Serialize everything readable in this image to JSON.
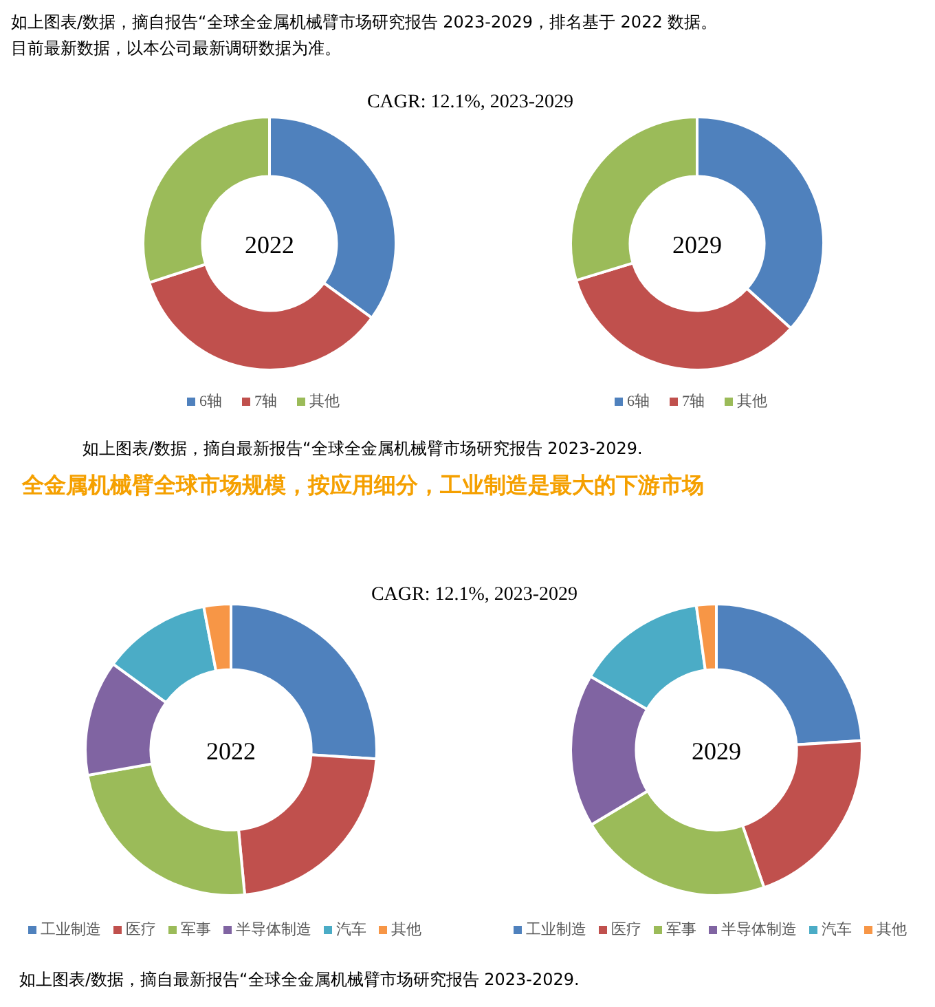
{
  "chart_data": [
    {
      "type": "donut",
      "title": "CAGR:  12.1%, 2023-2029",
      "categories": [
        "6轴",
        "7轴",
        "其他"
      ],
      "values": [
        35,
        35,
        30
      ],
      "colors": [
        "#4f81bd",
        "#c0504d",
        "#9bbb59"
      ],
      "legend": "bottom",
      "annotations": [
        "2022",
        "如上图表/数据，摘自报告“全球全金属机械臂市场研究报告 2023-2029，排名基于 2022 数据。",
        "目前最新数据，以本公司最新调研数据为准。"
      ]
    },
    {
      "type": "donut",
      "categories": [
        "6轴",
        "7轴",
        "其他"
      ],
      "values": [
        36.7,
        33.6,
        29.7
      ],
      "colors": [
        "#4f81bd",
        "#c0504d",
        "#9bbb59"
      ],
      "legend": "bottom",
      "annotations": [
        "2029",
        "如上图表/数据，摘自最新报告“全球全金属机械臂市场研究报告 2023-2029."
      ]
    },
    {
      "type": "donut",
      "title": "CAGR: 12.1%, 2023-2029",
      "categories": [
        "工业制造",
        "医疗",
        "军事",
        "半导体制造",
        "汽车",
        "其他"
      ],
      "values": [
        26,
        22.5,
        23.7,
        12.8,
        12,
        3
      ],
      "colors": [
        "#4f81bd",
        "#c0504d",
        "#9bbb59",
        "#8064a2",
        "#4bacc6",
        "#f79646"
      ],
      "legend": "bottom",
      "annotations": [
        "2022",
        "全金属机械臂全球市场规模，按应用细分，工业制造是最大的下游市场"
      ]
    },
    {
      "type": "donut",
      "categories": [
        "工业制造",
        "医疗",
        "军事",
        "半导体制造",
        "汽车",
        "其他"
      ],
      "values": [
        24,
        20.7,
        21.7,
        17,
        14.4,
        2.2
      ],
      "colors": [
        "#4f81bd",
        "#c0504d",
        "#9bbb59",
        "#8064a2",
        "#4bacc6",
        "#f79646"
      ],
      "legend": "bottom",
      "annotations": [
        "2029",
        "如上图表/数据，摘自最新报告“全球全金属机械臂市场研究报告 2023-2029."
      ]
    }
  ]
}
